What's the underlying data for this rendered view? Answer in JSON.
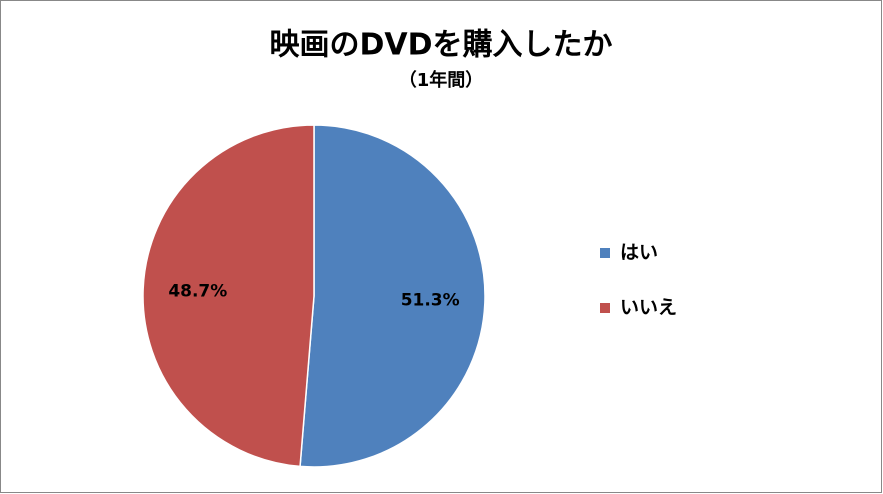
{
  "chart_data": {
    "type": "pie",
    "title": "映画のDVDを購入したか",
    "subtitle": "（1年間）",
    "categories": [
      "はい",
      "いいえ"
    ],
    "values": [
      51.3,
      48.7
    ],
    "value_labels": [
      "51.3%",
      "48.7%"
    ],
    "colors": [
      "#4f81bd",
      "#c0504d"
    ],
    "legend": "right"
  }
}
